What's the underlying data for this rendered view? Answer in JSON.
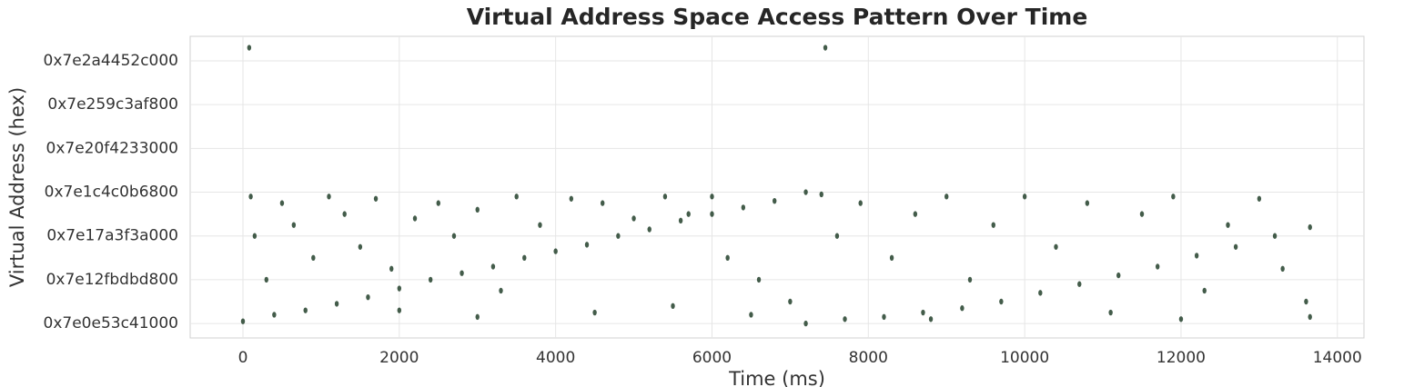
{
  "chart_data": {
    "type": "scatter",
    "title": "Virtual Address Space Access Pattern Over Time",
    "x_label": "Time (ms)",
    "y_label": "Virtual Address (hex)",
    "color": "#2f4a36",
    "grid": true,
    "xlim": [
      -675,
      14340
    ],
    "xticks": [
      0,
      2000,
      4000,
      6000,
      8000,
      10000,
      12000,
      14000
    ],
    "ylim": [
      138593400000000,
      138731200000000
    ],
    "yticks": [
      {
        "value": 138600000000000,
        "label": "0x7e0e53c41000"
      },
      {
        "value": 138620000000000,
        "label": "0x7e12fbdbd800"
      },
      {
        "value": 138640000000000,
        "label": "0x7e17a3f3a000"
      },
      {
        "value": 138660000000000,
        "label": "0x7e1c4c0b6800"
      },
      {
        "value": 138680000000000,
        "label": "0x7e20f4233000"
      },
      {
        "value": 138700000000000,
        "label": "0x7e259c3af800"
      },
      {
        "value": 138720000000000,
        "label": "0x7e2a4452c000"
      }
    ],
    "x": [
      0,
      400,
      800,
      1200,
      1600,
      2000,
      2400,
      2800,
      3200,
      3600,
      4000,
      4400,
      4800,
      5200,
      5600,
      6000,
      6400,
      6800,
      7200,
      7200,
      7700,
      8200,
      8700,
      9200,
      9700,
      10200,
      10700,
      11200,
      11700,
      12200,
      12700,
      13200,
      13650,
      100,
      150,
      300,
      500,
      650,
      900,
      1100,
      1300,
      1500,
      1700,
      1900,
      2200,
      2500,
      2700,
      3000,
      3300,
      3500,
      3800,
      4200,
      4600,
      5000,
      5400,
      5700,
      6000,
      6200,
      6600,
      7000,
      7400,
      7600,
      7900,
      8300,
      8600,
      9000,
      9300,
      9600,
      10000,
      10400,
      10800,
      11100,
      11500,
      11900,
      12300,
      12600,
      13000,
      13300,
      13600,
      13650,
      4500,
      3000,
      8800,
      12000,
      6500,
      5500,
      2000,
      80,
      7450
    ],
    "values": [
      138601000000000,
      138604000000000,
      138606000000000,
      138609000000000,
      138612000000000,
      138616000000000,
      138620000000000,
      138623000000000,
      138626000000000,
      138630000000000,
      138633000000000,
      138636000000000,
      138640000000000,
      138643000000000,
      138647000000000,
      138650000000000,
      138653000000000,
      138656000000000,
      138660000000000,
      138600000000000,
      138602000000000,
      138603000000000,
      138605000000000,
      138607000000000,
      138610000000000,
      138614000000000,
      138618000000000,
      138622000000000,
      138626000000000,
      138631000000000,
      138635000000000,
      138640000000000,
      138644000000000,
      138658000000000,
      138640000000000,
      138620000000000,
      138655000000000,
      138645000000000,
      138630000000000,
      138658000000000,
      138650000000000,
      138635000000000,
      138657000000000,
      138625000000000,
      138648000000000,
      138655000000000,
      138640000000000,
      138652000000000,
      138615000000000,
      138658000000000,
      138645000000000,
      138657000000000,
      138655000000000,
      138648000000000,
      138658000000000,
      138650000000000,
      138658000000000,
      138630000000000,
      138620000000000,
      138610000000000,
      138659000000000,
      138640000000000,
      138655000000000,
      138630000000000,
      138650000000000,
      138658000000000,
      138620000000000,
      138645000000000,
      138658000000000,
      138635000000000,
      138655000000000,
      138605000000000,
      138650000000000,
      138658000000000,
      138615000000000,
      138645000000000,
      138657000000000,
      138625000000000,
      138610000000000,
      138603000000000,
      138605000000000,
      138603000000000,
      138602000000000,
      138602000000000,
      138604000000000,
      138608000000000,
      138606000000000,
      138726000000000,
      138726000000000
    ]
  }
}
